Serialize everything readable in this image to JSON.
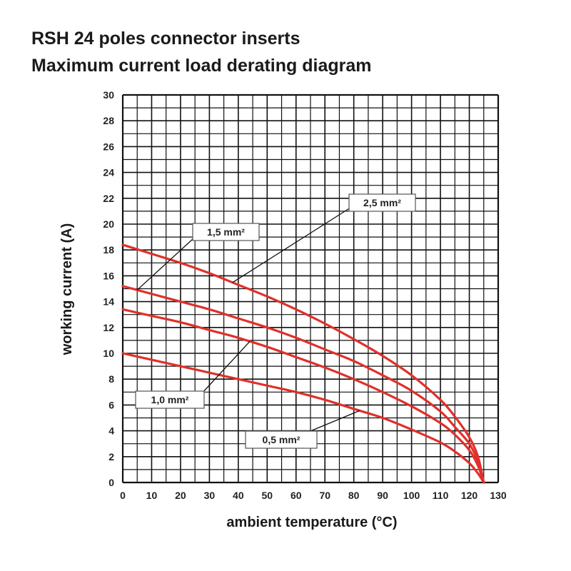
{
  "chart_data": {
    "type": "line",
    "title": "RSH 24 poles connector inserts",
    "subtitle": "Maximum current load derating diagram",
    "xlabel": "ambient temperature (°C)",
    "ylabel": "working current (A)",
    "xlim": [
      0,
      130
    ],
    "ylim": [
      0,
      30
    ],
    "x_ticks": [
      0,
      10,
      20,
      30,
      40,
      50,
      60,
      70,
      80,
      90,
      100,
      110,
      120,
      130
    ],
    "y_ticks": [
      0,
      2,
      4,
      6,
      8,
      10,
      12,
      14,
      16,
      18,
      20,
      22,
      24,
      26,
      28,
      30
    ],
    "grid": true,
    "line_color": "#e0302a",
    "series": [
      {
        "name": "2,5 mm²",
        "x": [
          0,
          10,
          20,
          30,
          40,
          50,
          60,
          70,
          80,
          90,
          100,
          110,
          115,
          120,
          123,
          125
        ],
        "y": [
          18.4,
          17.7,
          17.0,
          16.2,
          15.3,
          14.4,
          13.4,
          12.3,
          11.1,
          9.8,
          8.3,
          6.4,
          5.1,
          3.5,
          2.0,
          0
        ]
      },
      {
        "name": "1,5 mm²",
        "x": [
          0,
          10,
          20,
          30,
          40,
          50,
          60,
          70,
          80,
          90,
          100,
          110,
          115,
          120,
          123,
          125
        ],
        "y": [
          15.2,
          14.6,
          14.0,
          13.4,
          12.7,
          12.0,
          11.2,
          10.3,
          9.4,
          8.3,
          7.1,
          5.5,
          4.3,
          3.0,
          1.6,
          0
        ]
      },
      {
        "name": "1,0 mm²",
        "x": [
          0,
          10,
          20,
          30,
          40,
          50,
          60,
          70,
          80,
          90,
          100,
          110,
          115,
          120,
          123,
          125
        ],
        "y": [
          13.4,
          12.9,
          12.4,
          11.8,
          11.2,
          10.5,
          9.7,
          8.9,
          8.0,
          7.0,
          5.9,
          4.6,
          3.7,
          2.5,
          1.3,
          0
        ]
      },
      {
        "name": "0,5 mm²",
        "x": [
          0,
          10,
          20,
          30,
          40,
          50,
          60,
          70,
          80,
          90,
          100,
          110,
          115,
          120,
          123,
          125
        ],
        "y": [
          10.0,
          9.5,
          9.0,
          8.5,
          8.0,
          7.5,
          7.0,
          6.4,
          5.7,
          5.0,
          4.1,
          3.1,
          2.4,
          1.5,
          0.7,
          0
        ]
      }
    ],
    "annotations": [
      {
        "text": "2,5 mm²",
        "series": "2,5 mm²"
      },
      {
        "text": "1,5 mm²",
        "series": "1,5 mm²"
      },
      {
        "text": "1,0 mm²",
        "series": "1,0 mm²"
      },
      {
        "text": "0,5 mm²",
        "series": "0,5 mm²"
      }
    ]
  }
}
